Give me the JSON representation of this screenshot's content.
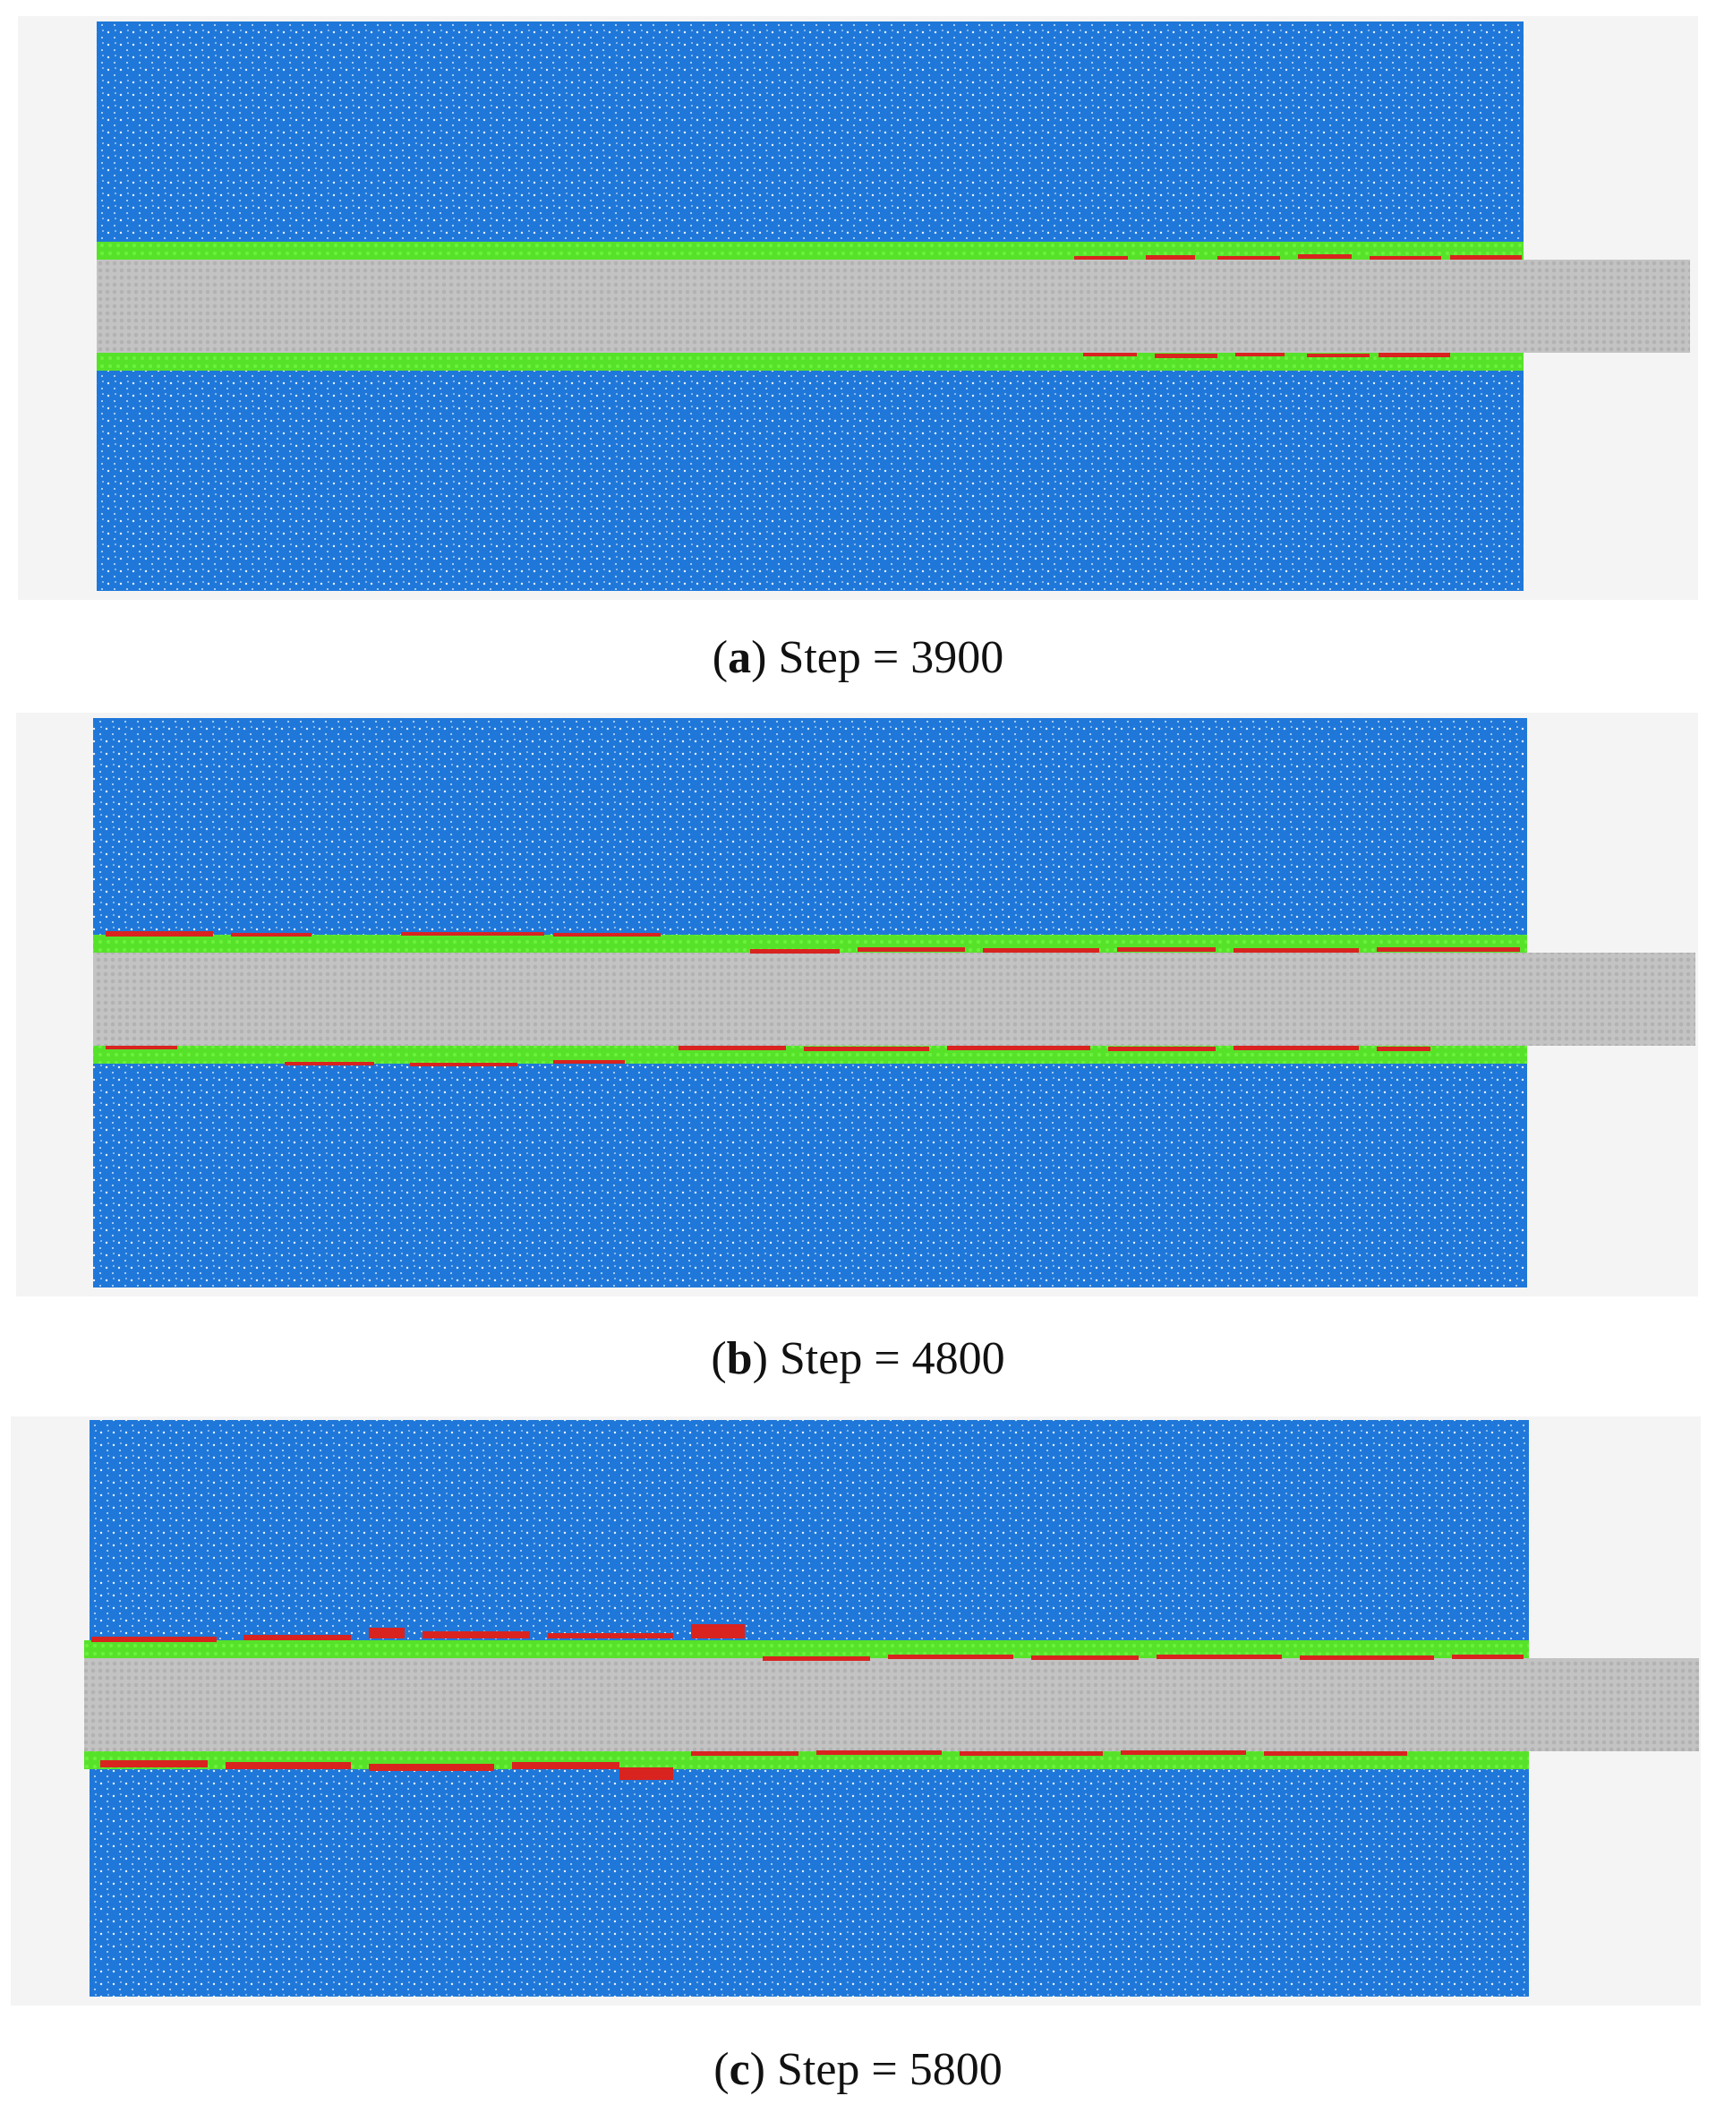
{
  "colors": {
    "specimen_blue": "#1f78d9",
    "bond_green": "#57e22a",
    "crack_red": "#d9231f",
    "bar_grey": "#c3c3c3",
    "background": "#f4f4f4"
  },
  "panels": [
    {
      "id": "a",
      "label_letter": "a",
      "caption_text": "Step = 3900"
    },
    {
      "id": "b",
      "label_letter": "b",
      "caption_text": "Step = 4800"
    },
    {
      "id": "c",
      "label_letter": "c",
      "caption_text": "Step = 5800"
    }
  ]
}
